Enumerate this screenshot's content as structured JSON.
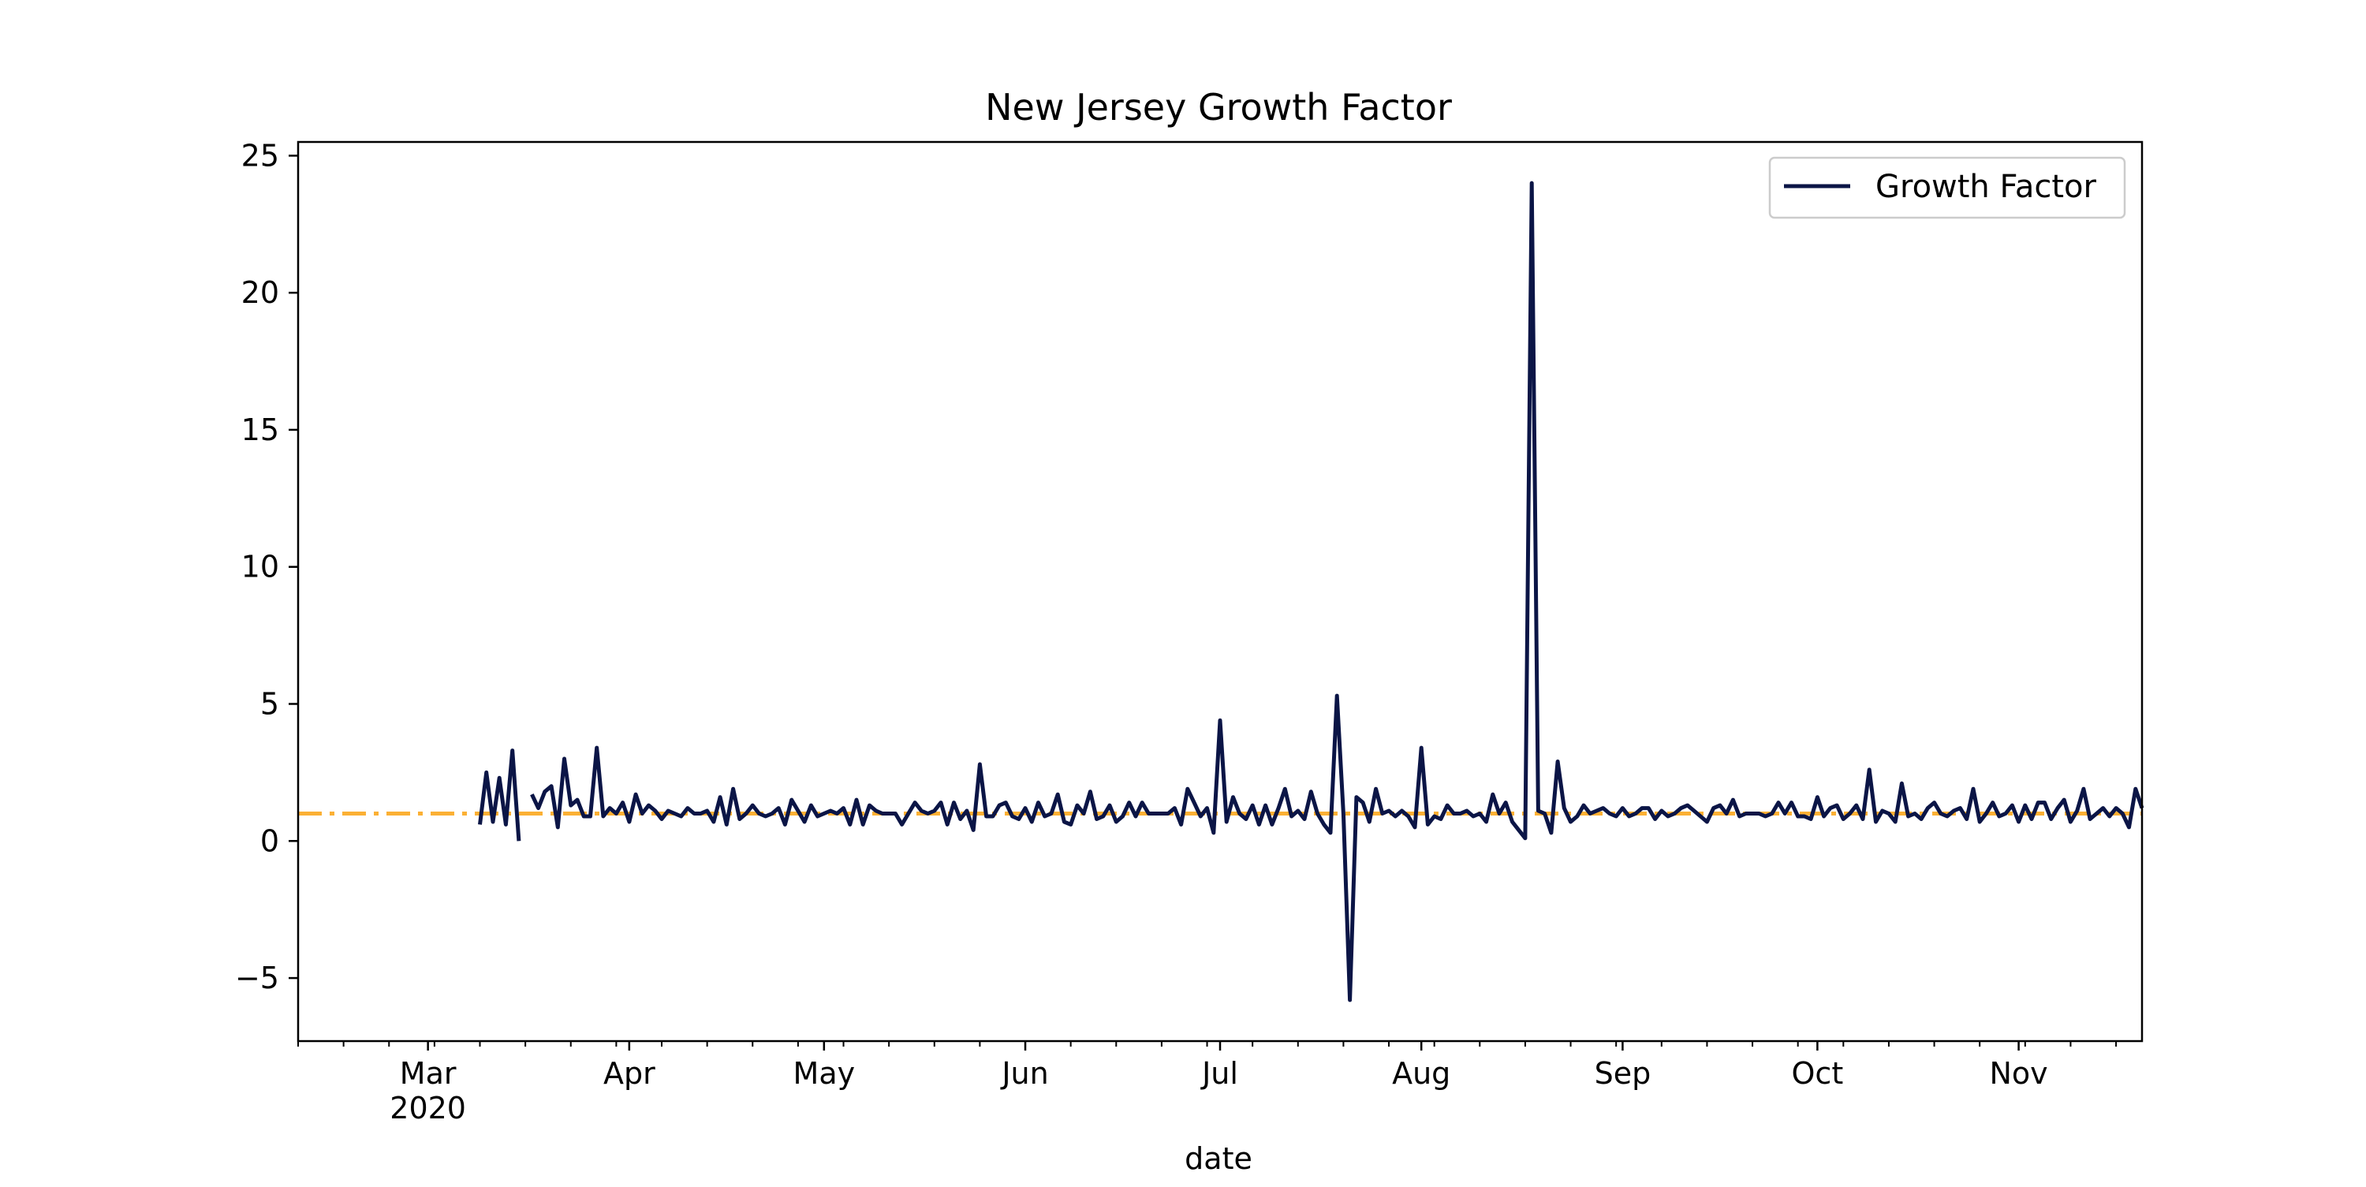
{
  "chart_data": {
    "type": "line",
    "title": "New Jersey Growth Factor",
    "xlabel": "date",
    "ylabel": "",
    "x_axis": {
      "type": "date",
      "range": [
        "2020-02-10",
        "2020-11-20"
      ],
      "major_ticks": [
        {
          "date": "2020-03-01",
          "label": "Mar",
          "sublabel": "2020"
        },
        {
          "date": "2020-04-01",
          "label": "Apr",
          "sublabel": ""
        },
        {
          "date": "2020-05-01",
          "label": "May",
          "sublabel": ""
        },
        {
          "date": "2020-06-01",
          "label": "Jun",
          "sublabel": ""
        },
        {
          "date": "2020-07-01",
          "label": "Jul",
          "sublabel": ""
        },
        {
          "date": "2020-08-01",
          "label": "Aug",
          "sublabel": ""
        },
        {
          "date": "2020-09-01",
          "label": "Sep",
          "sublabel": ""
        },
        {
          "date": "2020-10-01",
          "label": "Oct",
          "sublabel": ""
        },
        {
          "date": "2020-11-01",
          "label": "Nov",
          "sublabel": ""
        }
      ],
      "minor_tick_interval_days": 7
    },
    "y_axis": {
      "range": [
        -7.3,
        25.5
      ],
      "ticks": [
        -5,
        0,
        5,
        10,
        15,
        20,
        25
      ]
    },
    "grid": false,
    "legend": {
      "position": "top-right"
    },
    "reference_line": {
      "y": 1,
      "color": "#fbb034",
      "style": "dash-dot"
    },
    "series": [
      {
        "name": "Growth Factor",
        "color": "#0b1546",
        "segments": [
          {
            "start": "2020-03-09",
            "values": [
              0.6,
              2.5,
              0.7,
              2.3,
              0.6,
              3.3,
              0.0
            ]
          },
          {
            "start": "2020-03-17",
            "values": [
              1.7,
              1.2,
              1.8,
              2.0,
              0.5,
              3.0,
              1.3,
              1.5,
              0.9,
              0.9,
              3.4,
              0.9,
              1.2,
              1.0,
              1.4,
              0.7,
              1.7,
              1.0,
              1.3,
              1.1,
              0.8,
              1.1,
              1.0,
              0.9,
              1.2,
              1.0,
              1.0,
              1.1,
              0.7,
              1.6,
              0.6,
              1.9,
              0.8,
              1.0,
              1.3,
              1.0,
              0.9,
              1.0,
              1.2,
              0.6,
              1.5,
              1.1,
              0.7,
              1.3,
              0.9,
              1.0,
              1.1,
              1.0,
              1.2,
              0.6,
              1.5,
              0.6,
              1.3,
              1.1,
              1.0,
              1.0,
              1.0,
              0.6,
              1.0,
              1.4,
              1.1,
              1.0,
              1.1,
              1.4,
              0.6,
              1.4,
              0.8,
              1.1,
              0.4,
              2.8,
              0.9,
              0.9,
              1.3,
              1.4,
              0.9,
              0.8,
              1.2,
              0.7,
              1.4,
              0.9,
              1.0,
              1.7,
              0.7,
              0.6,
              1.3,
              1.0,
              1.8,
              0.8,
              0.9,
              1.3,
              0.7,
              0.9,
              1.4,
              0.9,
              1.4,
              1.0,
              1.0,
              1.0,
              1.0,
              1.2,
              0.6,
              1.9,
              1.4,
              0.9,
              1.2,
              0.3,
              4.4,
              0.7,
              1.6,
              1.0,
              0.8,
              1.3,
              0.6,
              1.3,
              0.6,
              1.2,
              1.9,
              0.9,
              1.1,
              0.8,
              1.8,
              1.0,
              0.6,
              0.3,
              5.3,
              1.0,
              -5.8,
              1.6,
              1.4,
              0.7,
              1.9,
              1.0,
              1.1,
              0.9,
              1.1,
              0.9,
              0.5,
              3.4,
              0.6,
              0.9,
              0.8,
              1.3,
              1.0,
              1.0,
              1.1,
              0.9,
              1.0,
              0.7,
              1.7,
              1.0,
              1.4,
              0.7,
              0.4,
              0.1,
              24.0,
              1.1,
              1.0,
              0.3,
              2.9,
              1.2,
              0.7,
              0.9,
              1.3,
              1.0,
              1.1,
              1.2,
              1.0,
              0.9,
              1.2,
              0.9,
              1.0,
              1.2,
              1.2,
              0.8,
              1.1,
              0.9,
              1.0,
              1.2,
              1.3,
              1.1,
              0.9,
              0.7,
              1.2,
              1.3,
              1.0,
              1.5,
              0.9,
              1.0,
              1.0,
              1.0,
              0.9,
              1.0,
              1.4,
              1.0,
              1.4,
              0.9,
              0.9,
              0.8,
              1.6,
              0.9,
              1.2,
              1.3,
              0.8,
              1.0,
              1.3,
              0.8,
              2.6,
              0.7,
              1.1,
              1.0,
              0.7,
              2.1,
              0.9,
              1.0,
              0.8,
              1.2,
              1.4,
              1.0,
              0.9,
              1.1,
              1.2,
              0.8,
              1.9,
              0.7,
              1.0,
              1.4,
              0.9,
              1.0,
              1.3,
              0.7,
              1.3,
              0.8,
              1.4,
              1.4,
              0.8,
              1.2,
              1.5,
              0.7,
              1.1,
              1.9,
              0.8,
              1.0,
              1.2,
              0.9,
              1.2,
              1.0,
              0.5,
              1.9,
              1.2
            ]
          }
        ]
      }
    ]
  }
}
